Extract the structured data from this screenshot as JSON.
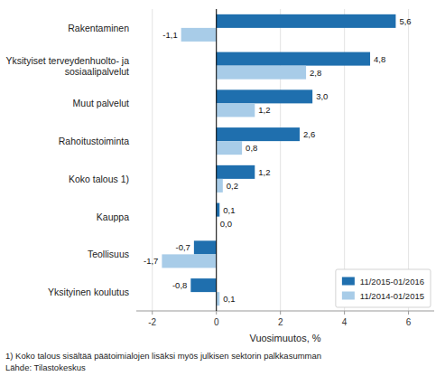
{
  "chart_data": {
    "type": "bar",
    "orientation": "horizontal",
    "categories": [
      "Yksityinen koulutus",
      "Teollisuus",
      "Kauppa",
      "Koko talous 1)",
      "Rahoitustoiminta",
      "Muut palvelut",
      "Yksityiset terveydenhuolto- ja\nsosiaalipalvelut",
      "Rakentaminen"
    ],
    "series": [
      {
        "name": "11/2015-01/2016",
        "color": "#1F6FAE",
        "values": [
          -0.8,
          -0.7,
          0.1,
          1.2,
          2.6,
          3.0,
          4.8,
          5.6
        ],
        "value_labels": [
          "-0,8",
          "-0,7",
          "0,1",
          "1,2",
          "2,6",
          "3,0",
          "4,8",
          "5,6"
        ]
      },
      {
        "name": "11/2014-01/2015",
        "color": "#A8CCE8",
        "values": [
          0.1,
          -1.7,
          0.0,
          0.2,
          0.8,
          1.2,
          2.8,
          -1.1
        ],
        "value_labels": [
          "0,1",
          "-1,7",
          "0,0",
          "0,2",
          "0,8",
          "1,2",
          "2,8",
          "-1,1"
        ]
      }
    ],
    "xlabel": "Vuosimuutos, %",
    "xlim": [
      -2.5,
      6.8
    ],
    "xticks": [
      -2,
      0,
      2,
      4,
      6
    ],
    "grid": true,
    "legend": "lower right",
    "data_labels": true,
    "annotations": [
      "1) Koko talous sisältää päätoimialojen lisäksi myös julkisen sektorin palkkasumman",
      "Lähde: Tilastokeskus"
    ]
  }
}
